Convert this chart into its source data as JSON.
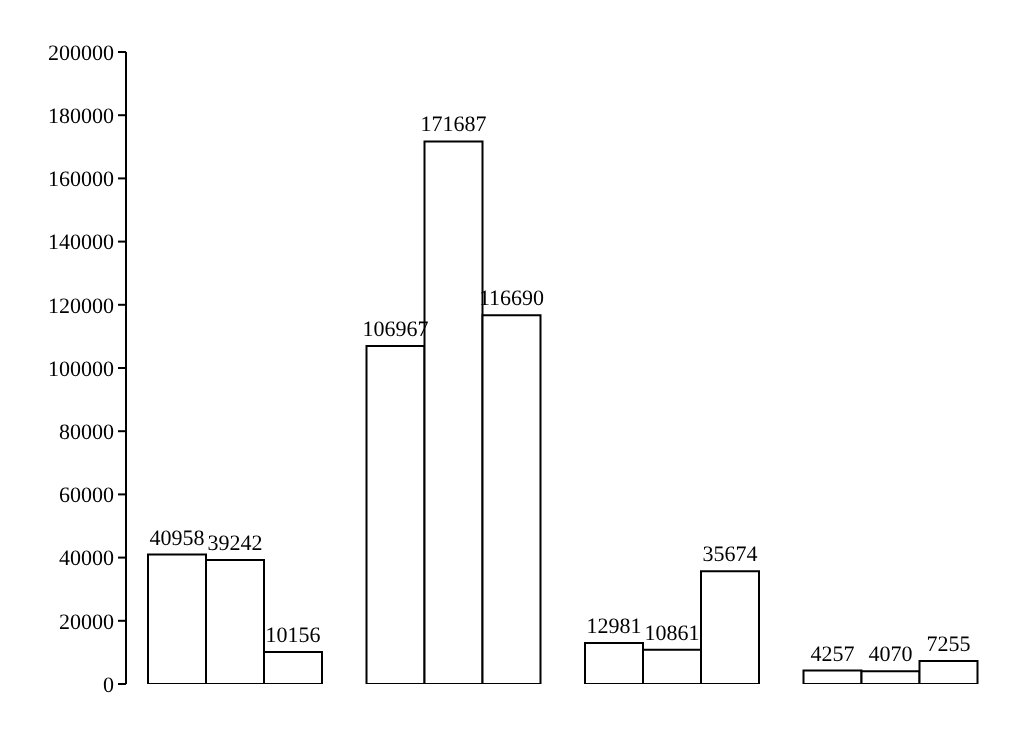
{
  "chart_data": {
    "type": "bar",
    "categories": [
      null,
      null,
      null,
      null
    ],
    "series": [
      {
        "color": "#ffffff",
        "values": [
          40958,
          106967,
          12981,
          4257
        ]
      },
      {
        "color": "#ffffff",
        "values": [
          39242,
          171687,
          10861,
          4070
        ]
      },
      {
        "color": "#ffffff",
        "values": [
          10156,
          116690,
          35674,
          7255
        ]
      }
    ],
    "ylim": [
      0,
      200000
    ],
    "yticks": [
      0,
      20000,
      40000,
      60000,
      80000,
      100000,
      120000,
      140000,
      160000,
      180000,
      200000
    ],
    "data_labels": true,
    "grid": false,
    "legend": false
  }
}
